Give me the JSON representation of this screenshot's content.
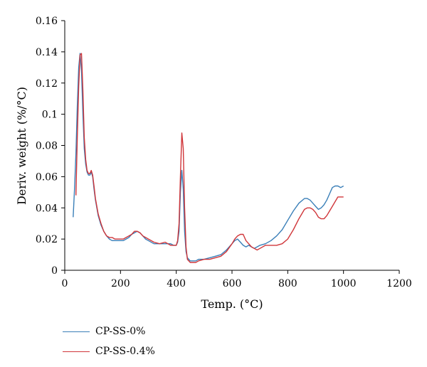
{
  "chart_data": {
    "type": "line",
    "title": "",
    "xlabel": "Temp. (°C)",
    "ylabel": "Deriv. weight (%/°C)",
    "xlim": [
      0,
      1200
    ],
    "ylim": [
      0,
      0.16
    ],
    "xticks": [
      0,
      200,
      400,
      600,
      800,
      1000,
      1200
    ],
    "xtick_labels": [
      "0",
      "200",
      "400",
      "600",
      "800",
      "1000",
      "1200"
    ],
    "yticks": [
      0,
      0.02,
      0.04,
      0.06,
      0.08,
      0.1,
      0.12,
      0.14,
      0.16
    ],
    "ytick_labels": [
      "0",
      "0.02",
      "0.04",
      "0.06",
      "0.08",
      "0.1",
      "0.12",
      "0.14",
      "0.16"
    ],
    "grid": false,
    "legend_position": "bottom-left, below plot",
    "series": [
      {
        "name": "CP-SS-0%",
        "color": "#3a7fb8",
        "x": [
          30,
          35,
          40,
          45,
          50,
          55,
          60,
          65,
          70,
          75,
          80,
          85,
          90,
          95,
          100,
          105,
          110,
          120,
          130,
          140,
          150,
          160,
          170,
          180,
          190,
          200,
          210,
          220,
          230,
          240,
          250,
          260,
          270,
          280,
          290,
          300,
          320,
          340,
          360,
          370,
          380,
          390,
          400,
          405,
          410,
          415,
          420,
          425,
          430,
          435,
          440,
          450,
          460,
          470,
          480,
          500,
          520,
          540,
          560,
          580,
          600,
          610,
          620,
          630,
          640,
          650,
          660,
          670,
          680,
          690,
          700,
          720,
          740,
          760,
          780,
          800,
          820,
          840,
          860,
          870,
          880,
          890,
          900,
          910,
          920,
          930,
          940,
          950,
          960,
          970,
          980,
          990,
          1000
        ],
        "y": [
          0.034,
          0.052,
          0.075,
          0.105,
          0.13,
          0.139,
          0.128,
          0.1,
          0.078,
          0.068,
          0.063,
          0.061,
          0.061,
          0.063,
          0.06,
          0.052,
          0.045,
          0.035,
          0.029,
          0.025,
          0.022,
          0.02,
          0.019,
          0.019,
          0.019,
          0.019,
          0.019,
          0.02,
          0.021,
          0.023,
          0.024,
          0.025,
          0.024,
          0.022,
          0.02,
          0.019,
          0.017,
          0.017,
          0.017,
          0.017,
          0.017,
          0.016,
          0.016,
          0.018,
          0.025,
          0.05,
          0.064,
          0.052,
          0.025,
          0.012,
          0.008,
          0.006,
          0.006,
          0.006,
          0.007,
          0.007,
          0.008,
          0.009,
          0.01,
          0.013,
          0.017,
          0.019,
          0.02,
          0.018,
          0.016,
          0.015,
          0.016,
          0.015,
          0.014,
          0.015,
          0.016,
          0.017,
          0.019,
          0.022,
          0.026,
          0.032,
          0.038,
          0.043,
          0.046,
          0.046,
          0.045,
          0.043,
          0.041,
          0.039,
          0.04,
          0.042,
          0.045,
          0.049,
          0.053,
          0.054,
          0.054,
          0.053,
          0.054
        ]
      },
      {
        "name": "CP-SS-0.4%",
        "color": "#d0363a",
        "x": [
          40,
          45,
          50,
          55,
          60,
          65,
          70,
          75,
          80,
          85,
          90,
          95,
          100,
          105,
          110,
          120,
          130,
          140,
          150,
          160,
          170,
          180,
          190,
          200,
          210,
          220,
          230,
          240,
          250,
          260,
          270,
          280,
          290,
          300,
          320,
          340,
          360,
          370,
          380,
          390,
          400,
          405,
          410,
          415,
          420,
          425,
          430,
          435,
          440,
          450,
          460,
          470,
          480,
          500,
          520,
          540,
          560,
          580,
          600,
          610,
          620,
          630,
          640,
          650,
          660,
          670,
          680,
          690,
          700,
          720,
          740,
          760,
          780,
          800,
          820,
          840,
          860,
          870,
          880,
          890,
          900,
          910,
          920,
          930,
          940,
          950,
          960,
          970,
          980,
          990,
          1000
        ],
        "y": [
          0.048,
          0.085,
          0.118,
          0.138,
          0.139,
          0.115,
          0.085,
          0.071,
          0.064,
          0.062,
          0.062,
          0.064,
          0.061,
          0.054,
          0.046,
          0.036,
          0.03,
          0.025,
          0.022,
          0.021,
          0.021,
          0.02,
          0.02,
          0.02,
          0.02,
          0.021,
          0.022,
          0.023,
          0.025,
          0.025,
          0.024,
          0.022,
          0.021,
          0.02,
          0.018,
          0.017,
          0.018,
          0.017,
          0.016,
          0.016,
          0.016,
          0.019,
          0.03,
          0.06,
          0.088,
          0.078,
          0.04,
          0.015,
          0.007,
          0.005,
          0.005,
          0.005,
          0.006,
          0.007,
          0.007,
          0.008,
          0.009,
          0.012,
          0.017,
          0.02,
          0.022,
          0.023,
          0.023,
          0.019,
          0.017,
          0.015,
          0.014,
          0.013,
          0.014,
          0.016,
          0.016,
          0.016,
          0.017,
          0.02,
          0.026,
          0.033,
          0.039,
          0.04,
          0.04,
          0.039,
          0.037,
          0.034,
          0.033,
          0.033,
          0.035,
          0.038,
          0.041,
          0.044,
          0.047,
          0.047,
          0.047
        ]
      }
    ]
  }
}
